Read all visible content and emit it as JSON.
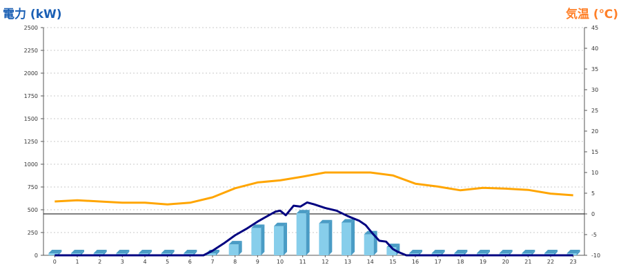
{
  "chart_data": {
    "type": "bar",
    "title_left": "電力 (kW)",
    "title_right": "気温 (℃)",
    "colors": {
      "bar": "#87ceeb",
      "bar_side": "#4a9cc5",
      "bar_top": "#4a9cc5",
      "power_line": "#000080",
      "temp_line": "#ffa500",
      "title_left": "#1a5fb4",
      "title_right": "#ff7f27"
    },
    "categories": [
      "0",
      "1",
      "2",
      "3",
      "4",
      "5",
      "6",
      "7",
      "8",
      "9",
      "10",
      "11",
      "12",
      "13",
      "14",
      "15",
      "16",
      "17",
      "18",
      "19",
      "20",
      "21",
      "22",
      "23"
    ],
    "y_left": {
      "min": 0,
      "max": 2500,
      "ticks": [
        "0",
        "250",
        "500",
        "750",
        "1000",
        "1250",
        "1500",
        "1750",
        "2000",
        "2250",
        "2500"
      ]
    },
    "y_right": {
      "min": -10,
      "max": 45,
      "ticks": [
        "-10",
        "-5",
        "0",
        "5",
        "10",
        "15",
        "20",
        "25",
        "30",
        "35",
        "40",
        "45"
      ]
    },
    "grid": true,
    "zero_line_temp": 0,
    "series": [
      {
        "kind": "bar",
        "axis": "left",
        "values": [
          0,
          0,
          0,
          0,
          0,
          0,
          0,
          0,
          120,
          300,
          320,
          460,
          350,
          360,
          230,
          90,
          0,
          0,
          0,
          0,
          0,
          0,
          0,
          0
        ]
      },
      {
        "kind": "line",
        "axis": "left",
        "points": [
          [
            0,
            0
          ],
          [
            1,
            0
          ],
          [
            2,
            0
          ],
          [
            3,
            0
          ],
          [
            4,
            0
          ],
          [
            5,
            0
          ],
          [
            6,
            0
          ],
          [
            6.6,
            0
          ],
          [
            7,
            50
          ],
          [
            7.5,
            130
          ],
          [
            8,
            220
          ],
          [
            8.5,
            290
          ],
          [
            9,
            370
          ],
          [
            9.5,
            440
          ],
          [
            9.8,
            480
          ],
          [
            10,
            490
          ],
          [
            10.25,
            440
          ],
          [
            10.6,
            545
          ],
          [
            10.9,
            535
          ],
          [
            11.2,
            580
          ],
          [
            11.5,
            560
          ],
          [
            12,
            520
          ],
          [
            12.5,
            490
          ],
          [
            13,
            430
          ],
          [
            13.5,
            380
          ],
          [
            13.8,
            330
          ],
          [
            14.1,
            240
          ],
          [
            14.4,
            160
          ],
          [
            14.7,
            150
          ],
          [
            15.0,
            70
          ],
          [
            15.2,
            40
          ],
          [
            15.6,
            0
          ],
          [
            16,
            0
          ],
          [
            17,
            0
          ],
          [
            18,
            0
          ],
          [
            19,
            0
          ],
          [
            20,
            0
          ],
          [
            21,
            0
          ],
          [
            22,
            0
          ],
          [
            23,
            0
          ]
        ]
      },
      {
        "kind": "line",
        "axis": "right",
        "values": [
          3,
          3.3,
          3,
          2.7,
          2.7,
          2.3,
          2.7,
          4,
          6.2,
          7.6,
          8.1,
          9,
          10,
          10,
          10,
          9.3,
          7.3,
          6.6,
          5.7,
          6.3,
          6.1,
          5.8,
          4.9,
          4.5
        ]
      }
    ]
  }
}
